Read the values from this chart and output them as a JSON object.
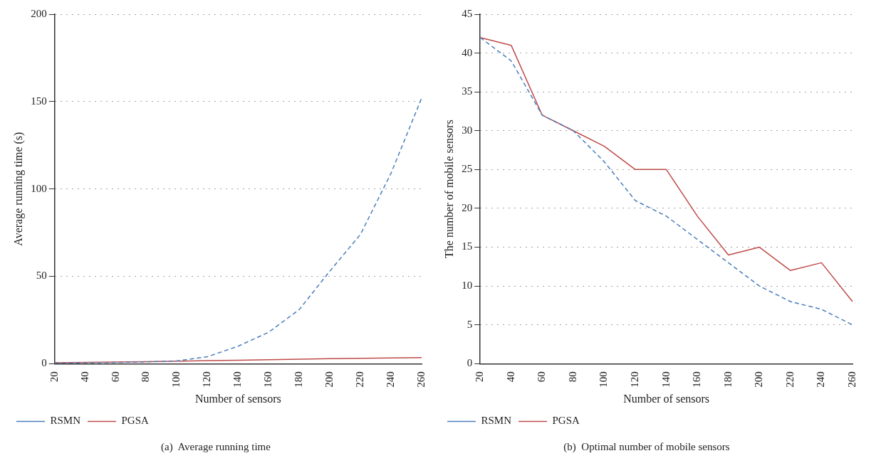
{
  "chart_data": [
    {
      "type": "line",
      "title": "(a)  Average running time",
      "xlabel": "Number of sensors",
      "ylabel": "Average running time (s)",
      "categories": [
        "20",
        "40",
        "60",
        "80",
        "100",
        "120",
        "140",
        "160",
        "180",
        "200",
        "220",
        "240",
        "260"
      ],
      "ylim": [
        0,
        200
      ],
      "yticks": [
        0,
        50,
        100,
        150,
        200
      ],
      "grid": "y",
      "legend": "bottom left",
      "marker": "none",
      "series": [
        {
          "name": "RSMN",
          "color": "#4a7ebb",
          "line_style": "dashed",
          "values": [
            0.3,
            0.5,
            0.7,
            1,
            1.6,
            4,
            10,
            18,
            31,
            53,
            74,
            109,
            152
          ]
        },
        {
          "name": "PGSA",
          "color": "#be4b48",
          "line_style": "solid",
          "values": [
            0.5,
            0.7,
            0.9,
            1.1,
            1.4,
            1.7,
            2,
            2.3,
            2.6,
            2.9,
            3.1,
            3.3,
            3.5
          ]
        }
      ]
    },
    {
      "type": "line",
      "title": "(b)  Optimal number of mobile sensors",
      "xlabel": "Number of sensors",
      "ylabel": "The number of mobile sensors",
      "categories": [
        "20",
        "40",
        "60",
        "80",
        "100",
        "120",
        "140",
        "160",
        "180",
        "200",
        "220",
        "240",
        "260"
      ],
      "ylim": [
        0,
        45
      ],
      "yticks": [
        0,
        5,
        10,
        15,
        20,
        25,
        30,
        35,
        40,
        45
      ],
      "grid": "y",
      "legend": "bottom left",
      "marker": "none",
      "series": [
        {
          "name": "RSMN",
          "color": "#4a7ebb",
          "line_style": "dashed",
          "values": [
            42,
            39,
            32,
            30,
            26,
            21,
            19,
            16,
            13,
            10,
            8,
            7,
            5
          ]
        },
        {
          "name": "PGSA",
          "color": "#be4b48",
          "line_style": "solid",
          "values": [
            42,
            41,
            32,
            30,
            28,
            25,
            25,
            19,
            14,
            15,
            12,
            13,
            8
          ]
        }
      ]
    }
  ]
}
